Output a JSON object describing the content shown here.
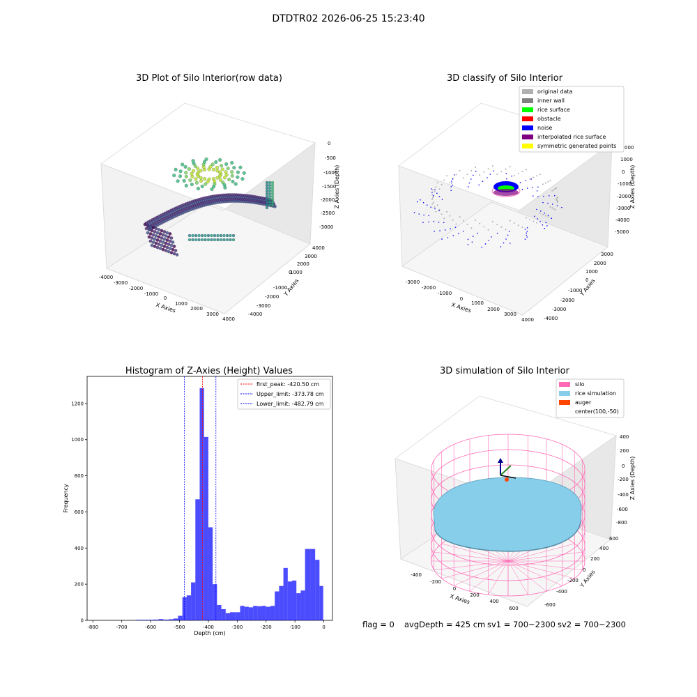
{
  "figure": {
    "suptitle": "DTDTR02 2026-06-25 15:23:40",
    "footer": {
      "flag": "flag = 0",
      "avg": "avgDepth = 425 cm",
      "sv1": "sv1 = 700~2300",
      "sv2": "sv2 = 700~2300"
    }
  },
  "chart_data": [
    {
      "type": "scatter",
      "id": "raw",
      "title": "3D Plot of Silo Interior(row data)",
      "xlabel": "X Axies",
      "ylabel": "Y Axies",
      "zlabel": "Z Axies (Depth)",
      "xticks": [
        "-4000",
        "-3000",
        "-2000",
        "-1000",
        "0",
        "1000",
        "2000",
        "3000",
        "4000"
      ],
      "yticks": [
        "-4000",
        "-3000",
        "-2000",
        "-1000",
        "0",
        "1000",
        "2000",
        "3000",
        "4000"
      ],
      "zticks": [
        "0",
        "-500",
        "-1000",
        "-1500",
        "-2000",
        "-2500",
        "-3000"
      ],
      "colormap": "viridis"
    },
    {
      "type": "scatter",
      "id": "classify",
      "title": "3D classify of Silo Interior",
      "xlabel": "X Axies",
      "ylabel": "Y Axies",
      "zlabel": "Z Axies (Depth)",
      "xticks": [
        "-3000",
        "-2000",
        "-1000",
        "0",
        "1000",
        "2000",
        "3000",
        "4000"
      ],
      "yticks": [
        "-4000",
        "-3000",
        "-2000",
        "-1000",
        "0",
        "1000",
        "2000",
        "3000"
      ],
      "zticks": [
        "2000",
        "1000",
        "0",
        "-1000",
        "-2000",
        "-3000",
        "-4000",
        "-5000"
      ],
      "ztop_label": "000",
      "legend": [
        {
          "label": "original data",
          "color": "#b0b0b0"
        },
        {
          "label": "inner wall",
          "color": "#808080"
        },
        {
          "label": "rice surface",
          "color": "#00ff00"
        },
        {
          "label": "obstacle",
          "color": "#ff0000"
        },
        {
          "label": "noise",
          "color": "#0000ff"
        },
        {
          "label": "interpolated rice surface",
          "color": "#800080"
        },
        {
          "label": "symmetric generated points",
          "color": "#ffff00"
        }
      ]
    },
    {
      "type": "bar",
      "id": "hist",
      "title": "Histogram of Z-Axies (Height) Values",
      "xlabel": "Depth (cm)",
      "ylabel": "Frequency",
      "xlim": [
        -820,
        30
      ],
      "ylim": [
        0,
        1350
      ],
      "xticks": [
        -800,
        -700,
        -600,
        -500,
        -400,
        -300,
        -200,
        -100,
        0
      ],
      "yticks": [
        0,
        200,
        400,
        600,
        800,
        1000,
        1200
      ],
      "bar_color": "#0000ff",
      "bins": [
        {
          "x0": -652,
          "x1": -592,
          "y": 3
        },
        {
          "x0": -592,
          "x1": -572,
          "y": 4
        },
        {
          "x0": -572,
          "x1": -556,
          "y": 7
        },
        {
          "x0": -556,
          "x1": -537,
          "y": 4
        },
        {
          "x0": -537,
          "x1": -521,
          "y": 6
        },
        {
          "x0": -521,
          "x1": -505,
          "y": 10
        },
        {
          "x0": -505,
          "x1": -490,
          "y": 25
        },
        {
          "x0": -490,
          "x1": -475,
          "y": 128
        },
        {
          "x0": -475,
          "x1": -460,
          "y": 138
        },
        {
          "x0": -460,
          "x1": -445,
          "y": 210
        },
        {
          "x0": -445,
          "x1": -430,
          "y": 670
        },
        {
          "x0": -430,
          "x1": -415,
          "y": 1285
        },
        {
          "x0": -415,
          "x1": -400,
          "y": 1015
        },
        {
          "x0": -400,
          "x1": -385,
          "y": 515
        },
        {
          "x0": -385,
          "x1": -370,
          "y": 200
        },
        {
          "x0": -370,
          "x1": -355,
          "y": 85
        },
        {
          "x0": -355,
          "x1": -340,
          "y": 62
        },
        {
          "x0": -340,
          "x1": -325,
          "y": 40
        },
        {
          "x0": -325,
          "x1": -305,
          "y": 45
        },
        {
          "x0": -305,
          "x1": -290,
          "y": 45
        },
        {
          "x0": -290,
          "x1": -275,
          "y": 80
        },
        {
          "x0": -275,
          "x1": -260,
          "y": 75
        },
        {
          "x0": -260,
          "x1": -245,
          "y": 72
        },
        {
          "x0": -245,
          "x1": -230,
          "y": 80
        },
        {
          "x0": -230,
          "x1": -215,
          "y": 78
        },
        {
          "x0": -215,
          "x1": -200,
          "y": 80
        },
        {
          "x0": -200,
          "x1": -185,
          "y": 75
        },
        {
          "x0": -185,
          "x1": -170,
          "y": 80
        },
        {
          "x0": -170,
          "x1": -155,
          "y": 160
        },
        {
          "x0": -155,
          "x1": -140,
          "y": 190
        },
        {
          "x0": -140,
          "x1": -125,
          "y": 290
        },
        {
          "x0": -125,
          "x1": -110,
          "y": 215
        },
        {
          "x0": -110,
          "x1": -95,
          "y": 220
        },
        {
          "x0": -95,
          "x1": -80,
          "y": 150
        },
        {
          "x0": -80,
          "x1": -65,
          "y": 165
        },
        {
          "x0": -65,
          "x1": -45,
          "y": 395
        },
        {
          "x0": -45,
          "x1": -30,
          "y": 395
        },
        {
          "x0": -30,
          "x1": -15,
          "y": 335
        },
        {
          "x0": -15,
          "x1": -2,
          "y": 190
        }
      ],
      "lines": [
        {
          "label": "first_peak: -420.50 cm",
          "x": -420.5,
          "color": "#ff0000"
        },
        {
          "label": "Upper_limit: -373.78 cm",
          "x": -373.78,
          "color": "#0000ff"
        },
        {
          "label": "Lower_limit: -482.79 cm",
          "x": -482.79,
          "color": "#0000ff"
        }
      ]
    },
    {
      "type": "scatter",
      "id": "sim",
      "title": "3D simulation of Silo Interior",
      "xlabel": "X Axies",
      "ylabel": "Y Axies",
      "zlabel": "Z Axies (Depth)",
      "xticks": [
        "-400",
        "-200",
        "0",
        "200",
        "400",
        "600"
      ],
      "yticks": [
        "-600",
        "-400",
        "-200",
        "0",
        "200",
        "400",
        "600"
      ],
      "zticks": [
        "400",
        "200",
        "0",
        "-200",
        "-400",
        "-600",
        "-800"
      ],
      "legend": [
        {
          "label": "silo",
          "color": "#ff69b4"
        },
        {
          "label": "rice simulation",
          "color": "#87ceeb"
        },
        {
          "label": "auger",
          "color": "#ff4500"
        },
        {
          "label": "center(100,-50)",
          "color": ""
        }
      ]
    }
  ]
}
